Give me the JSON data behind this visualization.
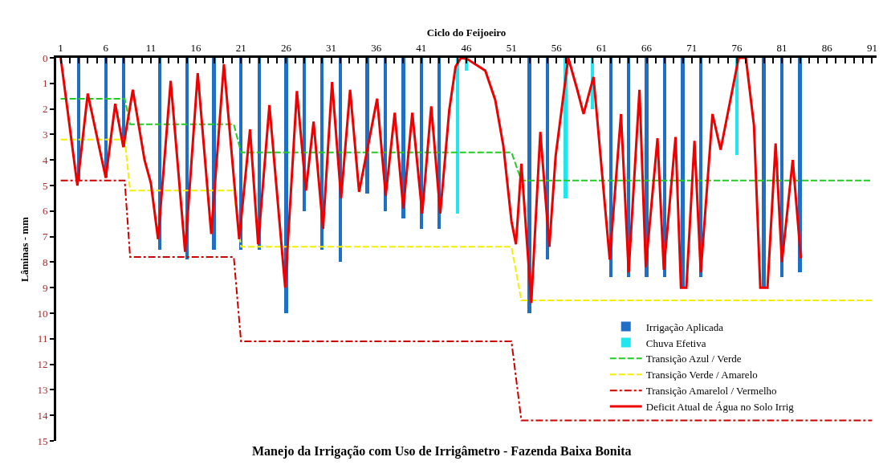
{
  "chart_data": {
    "type": "line",
    "title": "Manejo da Irrigação com Uso de Irrigâmetro - Fazenda Baixa Bonita",
    "xlabel": "Ciclo do Feijoeiro",
    "ylabel": "Lâminas - mm",
    "xlim": [
      0.5,
      91.5
    ],
    "xticks": [
      1,
      6,
      11,
      16,
      21,
      26,
      31,
      36,
      41,
      46,
      51,
      56,
      61,
      66,
      71,
      76,
      81,
      86,
      91
    ],
    "ylim": [
      15,
      0
    ],
    "yticks": [
      0,
      1,
      2,
      3,
      4,
      5,
      6,
      7,
      8,
      9,
      10,
      11,
      12,
      13,
      14,
      15
    ],
    "legend": "bottom right",
    "marker": "none",
    "series": [
      {
        "name": "Irrigação Aplicada",
        "type": "bar",
        "color": "#1f6fc5",
        "x": [
          3,
          6,
          8,
          12,
          15,
          18,
          21,
          23,
          26,
          28,
          30,
          32,
          35,
          37,
          39,
          41,
          43,
          53,
          55,
          62,
          64,
          66,
          68,
          70,
          72,
          79,
          81,
          83
        ],
        "values": [
          4.8,
          4.7,
          3.5,
          7.5,
          7.9,
          7.5,
          7.5,
          7.5,
          10.0,
          6.0,
          7.5,
          8.0,
          5.3,
          6.0,
          6.3,
          6.7,
          6.7,
          10.0,
          7.9,
          8.6,
          8.6,
          8.6,
          8.6,
          9.0,
          8.6,
          9.0,
          8.6,
          8.4
        ]
      },
      {
        "name": "Chuva Efetiva",
        "type": "bar",
        "color": "#22e6ee",
        "x": [
          45,
          46,
          57,
          60,
          76
        ],
        "values": [
          6.1,
          0.5,
          5.5,
          2.0,
          3.8
        ]
      },
      {
        "name": "Transição Azul / Verde",
        "line_style": "dashed",
        "color": "#22cc22",
        "x": [
          1,
          8.1,
          8.7,
          20.2,
          21,
          51,
          52.1,
          91
        ],
        "values": [
          1.6,
          1.6,
          2.6,
          2.6,
          3.7,
          3.7,
          4.8,
          4.8
        ]
      },
      {
        "name": "Transição Verde / Amarelo",
        "line_style": "dashed",
        "color": "#f2f000",
        "x": [
          1,
          8.1,
          8.7,
          20.2,
          21,
          51,
          52.1,
          91
        ],
        "values": [
          3.2,
          3.2,
          5.2,
          5.2,
          7.4,
          7.4,
          9.5,
          9.5
        ]
      },
      {
        "name": "Transição Amarelol / Vermelho",
        "line_style": "dashdot",
        "color": "#cc0000",
        "x": [
          1,
          8.1,
          8.7,
          20.2,
          21,
          51,
          52.1,
          91
        ],
        "values": [
          4.8,
          4.8,
          7.8,
          7.8,
          11.1,
          11.1,
          14.2,
          14.2
        ]
      },
      {
        "name": "Deficit Atual de Água no Solo Irrig",
        "line_style": "solid",
        "color": "#ee0000",
        "x": [
          1,
          2.85,
          4.0,
          6.0,
          7.05,
          7.95,
          9.0,
          10.3,
          11.0,
          11.8,
          13.2,
          14.8,
          16.2,
          17.7,
          19.1,
          20.8,
          22.0,
          22.9,
          24.15,
          25.9,
          27.2,
          28.2,
          29.05,
          30.1,
          31.1,
          32.1,
          33.1,
          34.1,
          36.1,
          37.05,
          38.05,
          39.0,
          40.0,
          41.1,
          42.1,
          43.1,
          44.1,
          44.8,
          45.4,
          46.1,
          48.1,
          49.2,
          50.1,
          51.0,
          51.5,
          52.1,
          53.2,
          54.2,
          55.2,
          55.9,
          57.3,
          58.3,
          59.0,
          60.1,
          61.9,
          63.15,
          64.0,
          65.2,
          65.9,
          67.2,
          67.9,
          69.2,
          69.8,
          70.4,
          71.3,
          72.0,
          73.3,
          74.2,
          76.2,
          77.0,
          77.9,
          78.6,
          79.4,
          80.3,
          81.0,
          82.2,
          83.1
        ],
        "values": [
          0,
          5.0,
          1.4,
          4.7,
          1.8,
          3.5,
          1.25,
          4.0,
          4.9,
          7.1,
          0.9,
          7.6,
          0.6,
          6.9,
          0.25,
          7.1,
          2.8,
          7.3,
          1.85,
          9.0,
          1.3,
          5.2,
          2.5,
          6.7,
          0.95,
          5.5,
          1.25,
          5.25,
          1.6,
          5.4,
          2.15,
          5.9,
          2.15,
          6.1,
          1.9,
          6.1,
          2.05,
          0.35,
          0,
          0.05,
          0.5,
          1.65,
          3.45,
          6.4,
          7.3,
          4.15,
          9.6,
          2.9,
          7.4,
          3.85,
          0,
          1.25,
          2.2,
          0.75,
          7.9,
          2.2,
          8.4,
          1.25,
          8.2,
          3.15,
          8.3,
          3.1,
          9.0,
          9.0,
          3.25,
          8.4,
          2.2,
          3.6,
          0,
          0,
          2.65,
          9.0,
          9.0,
          3.35,
          8.0,
          4.0,
          7.85
        ]
      }
    ]
  }
}
